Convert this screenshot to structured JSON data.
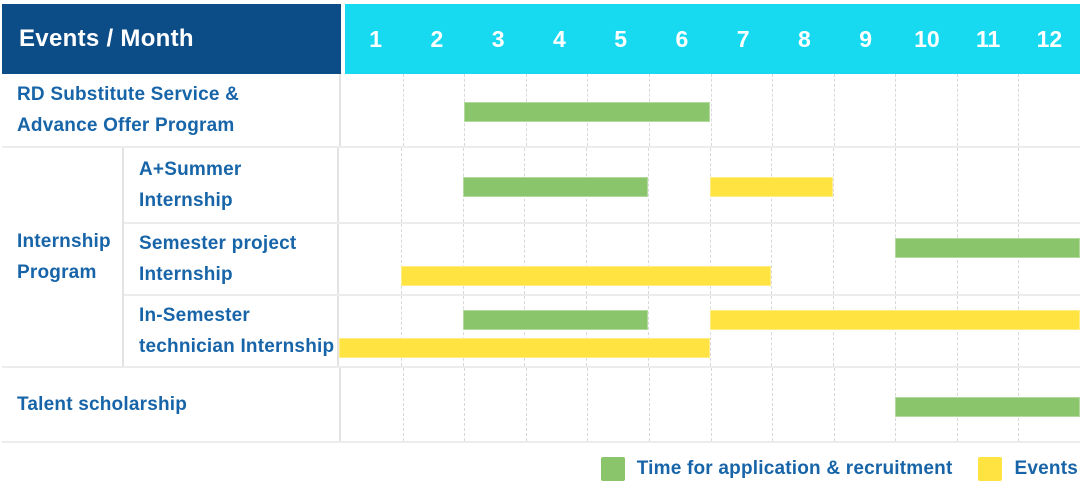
{
  "header": {
    "title": "Events / Month",
    "months": [
      "1",
      "2",
      "3",
      "4",
      "5",
      "6",
      "7",
      "8",
      "9",
      "10",
      "11",
      "12"
    ]
  },
  "labels": {
    "rd": [
      "RD Substitute Service &",
      "Advance Offer Program"
    ],
    "internship_group": [
      "Internship",
      "Program"
    ],
    "a_summer": [
      "A+Summer",
      "Internship"
    ],
    "semester_project": [
      "Semester project",
      "Internship"
    ],
    "in_semester": [
      "In-Semester",
      "technician Internship"
    ],
    "talent": [
      "Talent scholarship"
    ]
  },
  "legend": {
    "items": [
      {
        "label": "Time for application & recruitment",
        "color": "green"
      },
      {
        "label": "Events",
        "color": "yellow"
      }
    ]
  },
  "colors": {
    "green": "#8AC56B",
    "yellow": "#FFE441",
    "header_bg": "#0C4D87",
    "months_bg": "#17D9EF",
    "label_text": "#1765A8",
    "header_text": "#FFFFFF"
  },
  "chart_data": {
    "type": "gantt",
    "title": "Events / Month",
    "x_axis": {
      "label": "Month",
      "ticks": [
        1,
        2,
        3,
        4,
        5,
        6,
        7,
        8,
        9,
        10,
        11,
        12
      ],
      "range": [
        1,
        12
      ]
    },
    "grid": "dashed-vertical-month-lines",
    "legend_position": "bottom-right",
    "series_legend": [
      "Time for application & recruitment",
      "Events"
    ],
    "rows": [
      {
        "label": "RD Substitute Service & Advance Offer Program",
        "group": "",
        "bars": [
          {
            "series": "Time for application & recruitment",
            "color": "green",
            "lane": "center",
            "start_month": 3,
            "end_month": 6
          }
        ]
      },
      {
        "label": "A+Summer Internship",
        "group": "Internship Program",
        "bars": [
          {
            "series": "Time for application & recruitment",
            "color": "green",
            "lane": "center",
            "start_month": 3,
            "end_month": 5
          },
          {
            "series": "Events",
            "color": "yellow",
            "lane": "center",
            "start_month": 7,
            "end_month": 8
          }
        ]
      },
      {
        "label": "Semester project Internship",
        "group": "Internship Program",
        "bars": [
          {
            "series": "Time for application & recruitment",
            "color": "green",
            "lane": "top",
            "start_month": 10,
            "end_month": 12
          },
          {
            "series": "Events",
            "color": "yellow",
            "lane": "bottom",
            "start_month": 2,
            "end_month": 7
          }
        ]
      },
      {
        "label": "In-Semester technician Internship",
        "group": "Internship Program",
        "bars": [
          {
            "series": "Time for application & recruitment",
            "color": "green",
            "lane": "top",
            "start_month": 3,
            "end_month": 5
          },
          {
            "series": "Events",
            "color": "yellow",
            "lane": "top",
            "start_month": 7,
            "end_month": 12
          },
          {
            "series": "Events",
            "color": "yellow",
            "lane": "bottom",
            "start_month": 1,
            "end_month": 6
          }
        ]
      },
      {
        "label": "Talent scholarship",
        "group": "",
        "bars": [
          {
            "series": "Time for application & recruitment",
            "color": "green",
            "lane": "center",
            "start_month": 10,
            "end_month": 12
          }
        ]
      }
    ]
  }
}
